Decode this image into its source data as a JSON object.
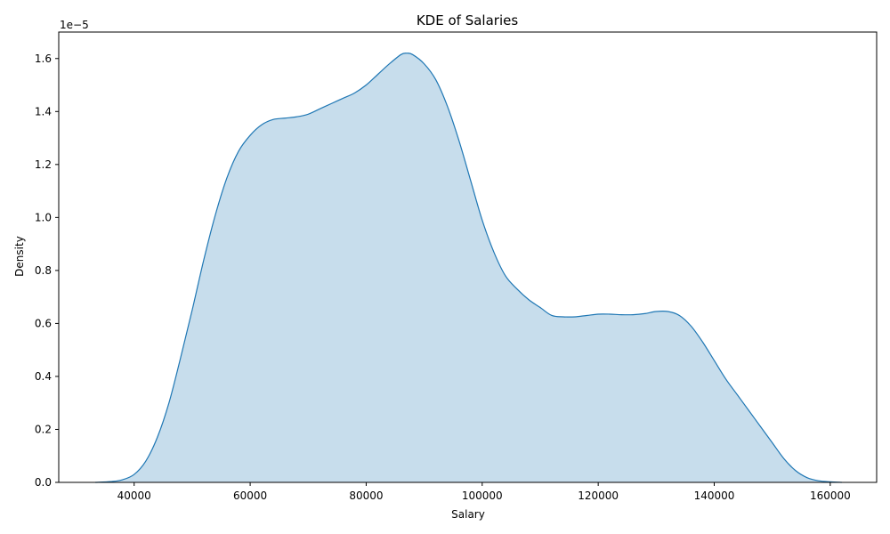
{
  "chart_data": {
    "type": "area",
    "title": "KDE of Salaries",
    "xlabel": "Salary",
    "ylabel": "Density",
    "y_offset_label": "1e−5",
    "xlim": [
      27000,
      168000
    ],
    "ylim": [
      0,
      1.7
    ],
    "xticks": [
      40000,
      60000,
      80000,
      100000,
      120000,
      140000,
      160000
    ],
    "xtick_labels": [
      "40000",
      "60000",
      "80000",
      "100000",
      "120000",
      "140000",
      "160000"
    ],
    "yticks": [
      0.0,
      0.2,
      0.4,
      0.6,
      0.8,
      1.0,
      1.2,
      1.4,
      1.6
    ],
    "ytick_labels": [
      "0.0",
      "0.2",
      "0.4",
      "0.6",
      "0.8",
      "1.0",
      "1.2",
      "1.4",
      "1.6"
    ],
    "grid": false,
    "line_color": "#1f77b4",
    "fill_color": "#1f77b4",
    "fill_opacity": 0.25,
    "series": [
      {
        "x": [
          33300,
          36000,
          38000,
          40000,
          42000,
          44000,
          46000,
          48000,
          50000,
          52000,
          54000,
          56000,
          58000,
          60000,
          62000,
          64000,
          66000,
          68000,
          70000,
          72000,
          74000,
          76000,
          78000,
          80000,
          82000,
          84000,
          86000,
          87000,
          88000,
          90000,
          92000,
          94000,
          96000,
          98000,
          100000,
          102000,
          104000,
          106000,
          108000,
          110000,
          112000,
          114000,
          116000,
          118000,
          120000,
          122000,
          124000,
          126000,
          128000,
          130000,
          132000,
          134000,
          136000,
          138000,
          140000,
          142000,
          144000,
          146000,
          148000,
          150000,
          152000,
          154000,
          156000,
          158000,
          160000,
          162000
        ],
        "y": [
          0.0,
          0.003,
          0.01,
          0.03,
          0.08,
          0.17,
          0.3,
          0.47,
          0.65,
          0.84,
          1.01,
          1.15,
          1.25,
          1.31,
          1.35,
          1.37,
          1.375,
          1.38,
          1.39,
          1.41,
          1.43,
          1.45,
          1.47,
          1.5,
          1.54,
          1.58,
          1.615,
          1.62,
          1.615,
          1.58,
          1.52,
          1.42,
          1.29,
          1.14,
          0.99,
          0.87,
          0.78,
          0.73,
          0.69,
          0.66,
          0.63,
          0.625,
          0.625,
          0.63,
          0.635,
          0.635,
          0.633,
          0.633,
          0.637,
          0.645,
          0.645,
          0.63,
          0.59,
          0.53,
          0.46,
          0.39,
          0.33,
          0.27,
          0.21,
          0.15,
          0.09,
          0.045,
          0.018,
          0.006,
          0.002,
          0.0
        ]
      }
    ]
  }
}
